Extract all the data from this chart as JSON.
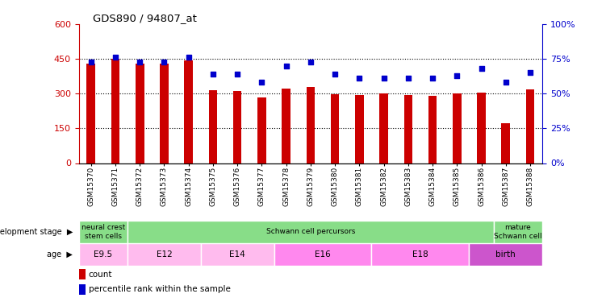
{
  "title": "GDS890 / 94807_at",
  "samples": [
    "GSM15370",
    "GSM15371",
    "GSM15372",
    "GSM15373",
    "GSM15374",
    "GSM15375",
    "GSM15376",
    "GSM15377",
    "GSM15378",
    "GSM15379",
    "GSM15380",
    "GSM15381",
    "GSM15382",
    "GSM15383",
    "GSM15384",
    "GSM15385",
    "GSM15386",
    "GSM15387",
    "GSM15388"
  ],
  "counts": [
    430,
    450,
    430,
    430,
    445,
    315,
    310,
    285,
    320,
    330,
    298,
    295,
    302,
    295,
    290,
    302,
    305,
    172,
    318
  ],
  "percentiles": [
    73,
    76,
    73,
    73,
    76,
    64,
    64,
    58,
    70,
    73,
    64,
    61,
    61,
    61,
    61,
    63,
    68,
    58,
    65
  ],
  "left_ylim": [
    0,
    600
  ],
  "right_ylim": [
    0,
    100
  ],
  "left_yticks": [
    0,
    150,
    300,
    450,
    600
  ],
  "right_yticks": [
    0,
    25,
    50,
    75,
    100
  ],
  "bar_color": "#cc0000",
  "dot_color": "#0000cc",
  "bg_color": "#ffffff",
  "plot_bg": "#ffffff",
  "axis_left_color": "#cc0000",
  "axis_right_color": "#0000cc",
  "dev_green": "#88dd88",
  "age_pink_light": "#ffaaee",
  "age_pink_mid": "#ff88ee",
  "age_purple": "#cc55cc",
  "dev_span_info": [
    [
      0,
      2,
      "neural crest\nstem cells"
    ],
    [
      2,
      17,
      "Schwann cell percursors"
    ],
    [
      17,
      19,
      "mature\nSchwann cell"
    ]
  ],
  "age_span_info": [
    [
      0,
      2,
      "E9.5",
      "#ffbbee"
    ],
    [
      2,
      5,
      "E12",
      "#ffbbee"
    ],
    [
      5,
      8,
      "E14",
      "#ffbbee"
    ],
    [
      8,
      12,
      "E16",
      "#ff88ee"
    ],
    [
      12,
      16,
      "E18",
      "#ff88ee"
    ],
    [
      16,
      19,
      "birth",
      "#cc55cc"
    ]
  ]
}
